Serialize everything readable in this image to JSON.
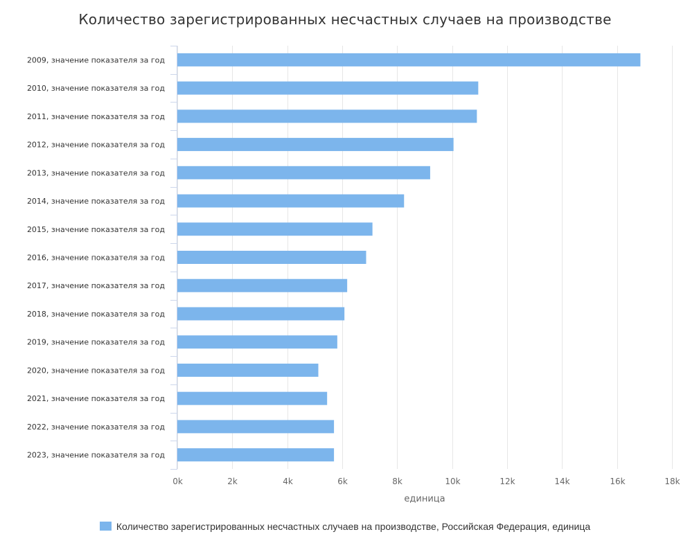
{
  "chart_data": {
    "type": "bar",
    "orientation": "horizontal",
    "title": "Количество зарегистрированных несчастных случаев на производстве",
    "xlabel": "единица",
    "ylabel": "",
    "xlim": [
      0,
      18000
    ],
    "ticks": [
      0,
      2000,
      4000,
      6000,
      8000,
      10000,
      12000,
      14000,
      16000,
      18000
    ],
    "tick_labels": [
      "0k",
      "2k",
      "4k",
      "6k",
      "8k",
      "10k",
      "12k",
      "14k",
      "16k",
      "18k"
    ],
    "categories": [
      "2009, значение показателя за год",
      "2010, значение показателя за год",
      "2011, значение показателя за год",
      "2012, значение показателя за год",
      "2013, значение показателя за год",
      "2014, значение показателя за год",
      "2015, значение показателя за год",
      "2016, значение показателя за год",
      "2017, значение показателя за год",
      "2018, значение показателя за год",
      "2019, значение показателя за год",
      "2020, значение показателя за год",
      "2021, значение показателя за год",
      "2022, значение показателя за год",
      "2023, значение показателя за год"
    ],
    "series": [
      {
        "name": "Количество зарегистрированных несчастных случаев на производстве, Российская Федерация, единица",
        "color": "#7cb5ec",
        "values": [
          16850,
          10950,
          10900,
          10050,
          9200,
          8250,
          7100,
          6870,
          6180,
          6080,
          5820,
          5130,
          5450,
          5700,
          5700
        ]
      }
    ],
    "grid": true,
    "legend_position": "bottom"
  }
}
